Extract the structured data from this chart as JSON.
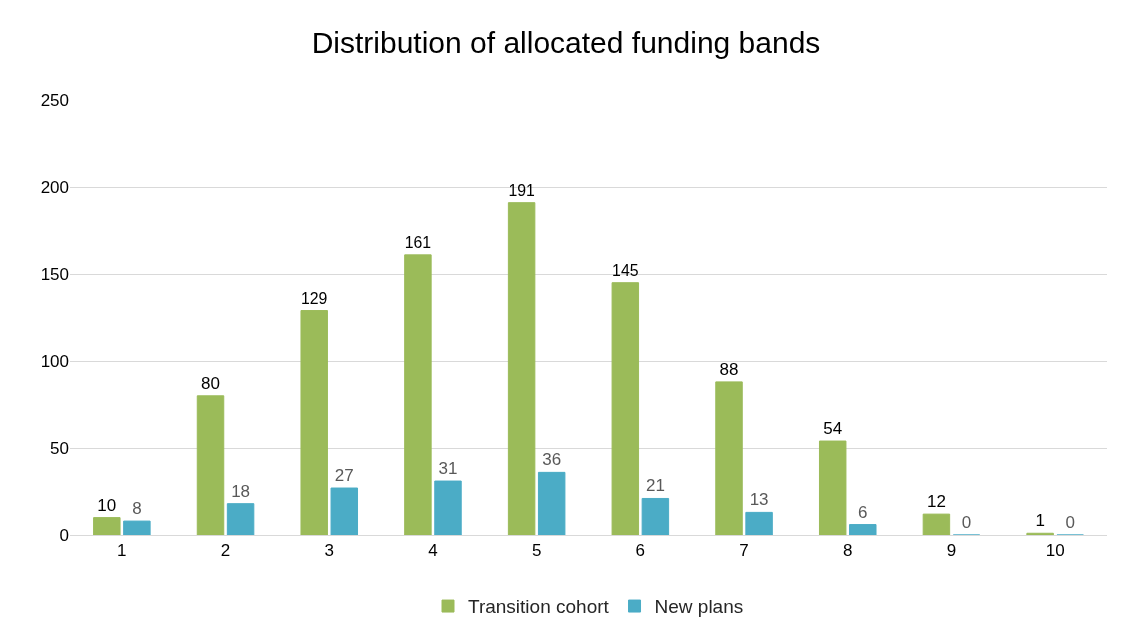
{
  "chart_data": {
    "type": "bar",
    "title": "Distribution of allocated funding bands",
    "categories": [
      "1",
      "2",
      "3",
      "4",
      "5",
      "6",
      "7",
      "8",
      "9",
      "10"
    ],
    "series": [
      {
        "name": "Transition cohort",
        "color": "#9bbb59",
        "values": [
          10,
          80,
          129,
          161,
          191,
          145,
          88,
          54,
          12,
          1
        ]
      },
      {
        "name": "New plans",
        "color": "#4bacc6",
        "values": [
          8,
          18,
          27,
          31,
          36,
          21,
          13,
          6,
          0,
          0
        ]
      }
    ],
    "ylim": [
      0,
      250
    ],
    "yticks": [
      0,
      50,
      100,
      150,
      200,
      250
    ],
    "grid": "y",
    "legend": "bottom",
    "data_labels": true
  }
}
